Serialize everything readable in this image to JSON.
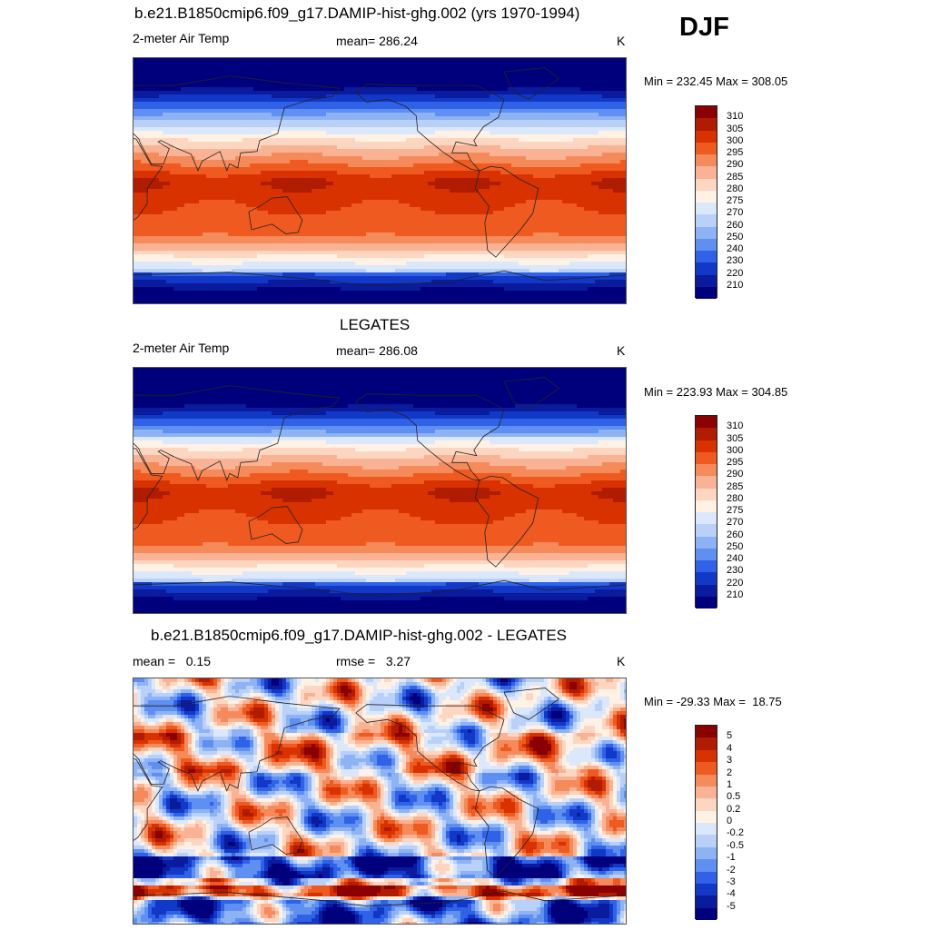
{
  "season": "DJF",
  "panels": [
    {
      "title": "b.e21.B1850cmip6.f09_g17.DAMIP-hist-ghg.002 (yrs 1970-1994)",
      "left_label": "2-meter Air Temp",
      "center_label": "mean= 286.24",
      "units": "K",
      "minmax": "Min = 232.45 Max = 308.05",
      "kind": "abs"
    },
    {
      "title": "LEGATES",
      "left_label": "2-meter Air Temp",
      "center_label": "mean= 286.08",
      "units": "K",
      "minmax": "Min = 223.93 Max = 304.85",
      "kind": "abs"
    },
    {
      "title": "b.e21.B1850cmip6.f09_g17.DAMIP-hist-ghg.002 - LEGATES",
      "left_label": "mean =   0.15",
      "center_label": "rmse =   3.27",
      "units": "K",
      "minmax": "Min = -29.33 Max =  18.75",
      "kind": "diff"
    }
  ],
  "colorbars": {
    "abs": {
      "labels": [
        "310",
        "305",
        "300",
        "295",
        "290",
        "285",
        "280",
        "275",
        "270",
        "260",
        "250",
        "240",
        "230",
        "220",
        "210"
      ],
      "colors": [
        "#8b0000",
        "#b01c00",
        "#d83200",
        "#ee5a20",
        "#f58a5a",
        "#f9b394",
        "#fcd6c0",
        "#fff1e4",
        "#dbe8fb",
        "#b9d1f8",
        "#8eb3f4",
        "#5f8ff0",
        "#2f62e6",
        "#1238c8",
        "#0a1b9e",
        "#00007c"
      ]
    },
    "diff": {
      "labels": [
        "5",
        "4",
        "3",
        "2",
        "1",
        "0.5",
        "0.2",
        "0",
        "-0.2",
        "-0.5",
        "-1",
        "-2",
        "-3",
        "-4",
        "-5"
      ],
      "colors": [
        "#8b0000",
        "#b01c00",
        "#d83200",
        "#ee5a20",
        "#f58a5a",
        "#f9b394",
        "#fcd6c0",
        "#fff1e4",
        "#dbe8fb",
        "#b9d1f8",
        "#8eb3f4",
        "#5f8ff0",
        "#2f62e6",
        "#1238c8",
        "#0a1b9e",
        "#00007c"
      ]
    }
  }
}
